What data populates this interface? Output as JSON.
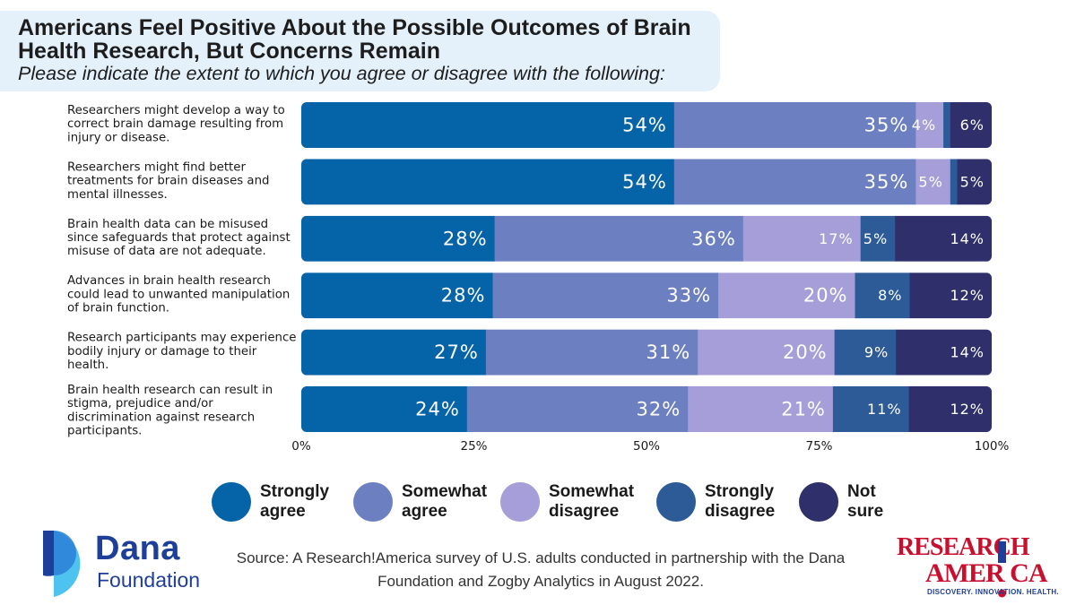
{
  "header": {
    "title": "Americans Feel Positive About the Possible Outcomes of Brain Health Research, But Concerns Remain",
    "subtitle": "Please indicate the extent to which you agree or disagree with the following:"
  },
  "chart_data": {
    "type": "bar",
    "orientation": "horizontal",
    "stacked": true,
    "title": "Americans Feel Positive About the Possible Outcomes of Brain Health Research, But Concerns Remain",
    "subtitle": "Please indicate the extent to which you agree or disagree with the following:",
    "categories": [
      "Researchers might develop a way to correct brain damage resulting from injury or disease.",
      "Researchers might find better treatments for brain diseases and mental illnesses.",
      "Brain health data can be misused since safeguards that protect against misuse of data are not adequate.",
      "Advances in brain health research could lead to unwanted manipulation of brain function.",
      "Research participants may experience bodily injury or damage to their health.",
      "Brain health research can result in stigma, prejudice and/or discrimination against research participants."
    ],
    "category_lines": [
      [
        "Researchers might develop a way to",
        "correct brain damage resulting from",
        "injury or disease."
      ],
      [
        "Researchers might find better",
        "treatments for brain diseases and",
        "mental illnesses."
      ],
      [
        "Brain health data can be misused",
        "since safeguards that protect against",
        "misuse of data are not adequate."
      ],
      [
        "Advances in brain health research",
        "could lead to unwanted manipulation",
        "of brain function."
      ],
      [
        "Research participants may experience",
        "bodily injury or damage to their",
        "health."
      ],
      [
        "Brain health research can result in",
        "stigma, prejudice and/or",
        "discrimination against research",
        "participants."
      ]
    ],
    "series": [
      {
        "name": "Strongly agree",
        "color": "#0563a8",
        "values": [
          54,
          54,
          28,
          28,
          27,
          24
        ],
        "labels": [
          "54%",
          "54%",
          "28%",
          "28%",
          "27%",
          "24%"
        ]
      },
      {
        "name": "Somewhat agree",
        "color": "#6b7fc1",
        "values": [
          35,
          35,
          36,
          33,
          31,
          32
        ],
        "labels": [
          "35%",
          "35%",
          "36%",
          "33%",
          "31%",
          "32%"
        ]
      },
      {
        "name": "Somewhat disagree",
        "color": "#a59ed8",
        "values": [
          4,
          5,
          17,
          20,
          20,
          21
        ],
        "labels": [
          "4%",
          "5%",
          "17%",
          "20%",
          "20%",
          "21%"
        ]
      },
      {
        "name": "Strongly disagree",
        "color": "#2c5b98",
        "values": [
          1,
          1,
          5,
          8,
          9,
          11
        ],
        "labels": [
          "",
          "",
          "5%",
          "8%",
          "9%",
          "11%"
        ]
      },
      {
        "name": "Not sure",
        "color": "#2e2f6b",
        "values": [
          6,
          5,
          14,
          12,
          14,
          12
        ],
        "labels": [
          "6%",
          "5%",
          "14%",
          "12%",
          "14%",
          "12%"
        ]
      }
    ],
    "x_ticks": [
      "0%",
      "25%",
      "50%",
      "75%",
      "100%"
    ],
    "xlim": [
      0,
      100
    ],
    "grid": false,
    "legend_position": "bottom"
  },
  "legend": [
    {
      "label_lines": [
        "Strongly",
        "agree"
      ],
      "color": "#0563a8"
    },
    {
      "label_lines": [
        "Somewhat",
        "agree"
      ],
      "color": "#6b7fc1"
    },
    {
      "label_lines": [
        "Somewhat",
        "disagree"
      ],
      "color": "#a59ed8"
    },
    {
      "label_lines": [
        "Strongly",
        "disagree"
      ],
      "color": "#2c5b98"
    },
    {
      "label_lines": [
        "Not",
        "sure"
      ],
      "color": "#2e2f6b"
    }
  ],
  "footer": {
    "source_line1": "Source: A Research!America survey of U.S. adults conducted in partnership with the Dana",
    "source_line2": "Foundation and Zogby Analytics in August 2022.",
    "dana_logo": {
      "name": "Dana",
      "sub": "Foundation"
    },
    "ra_logo": {
      "line1": "RESEARCH",
      "line2": "AMER CA",
      "tagline": "DISCOVERY. INNOVATION. HEALTH."
    }
  }
}
